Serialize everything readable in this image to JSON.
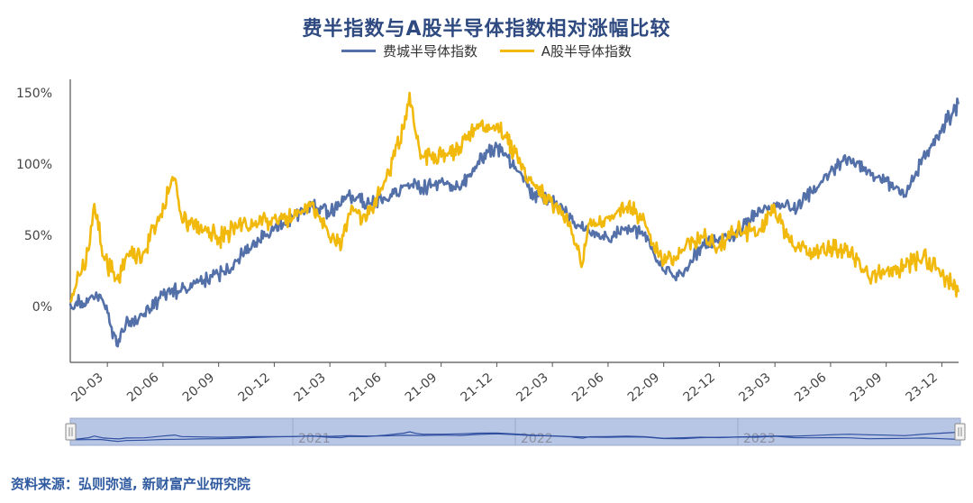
{
  "chart_data": {
    "type": "line",
    "title": "费半指数与A股半导体指数相对涨幅比较",
    "xlabel": "",
    "ylabel": "",
    "x_ticks": [
      "20-03",
      "20-06",
      "20-09",
      "20-12",
      "21-03",
      "21-06",
      "21-09",
      "21-12",
      "22-03",
      "22-06",
      "22-09",
      "22-12",
      "23-03",
      "23-06",
      "23-09",
      "23-12"
    ],
    "y_ticks": [
      "0%",
      "50%",
      "100%",
      "150%"
    ],
    "ylim": [
      -0.4,
      1.6
    ],
    "x_start": "2020-01",
    "grid": false,
    "legend_position": "top-center",
    "series": [
      {
        "name": "费城半导体指数",
        "color": "#5470a8",
        "x": [
          "2020-01",
          "2020-02",
          "2020-02-20",
          "2020-03-18",
          "2020-04",
          "2020-05",
          "2020-06",
          "2020-07",
          "2020-08",
          "2020-09",
          "2020-10",
          "2020-11",
          "2020-12",
          "2021-01",
          "2021-02",
          "2021-03",
          "2021-04",
          "2021-05",
          "2021-06",
          "2021-07",
          "2021-08",
          "2021-09",
          "2021-10",
          "2021-11",
          "2021-12",
          "2022-01",
          "2022-02",
          "2022-03",
          "2022-04",
          "2022-05",
          "2022-06",
          "2022-07",
          "2022-08",
          "2022-09",
          "2022-10",
          "2022-11",
          "2022-12",
          "2023-01",
          "2023-02",
          "2023-03",
          "2023-04",
          "2023-05",
          "2023-06",
          "2023-07",
          "2023-08",
          "2023-09",
          "2023-10",
          "2023-11",
          "2023-12",
          "2023-12-28"
        ],
        "values": [
          0.02,
          0.05,
          0.08,
          -0.28,
          -0.12,
          -0.05,
          0.08,
          0.12,
          0.18,
          0.22,
          0.32,
          0.45,
          0.55,
          0.62,
          0.72,
          0.65,
          0.78,
          0.72,
          0.75,
          0.85,
          0.82,
          0.88,
          0.82,
          1.02,
          1.12,
          0.98,
          0.78,
          0.75,
          0.62,
          0.52,
          0.48,
          0.55,
          0.52,
          0.25,
          0.22,
          0.42,
          0.48,
          0.52,
          0.65,
          0.72,
          0.68,
          0.8,
          0.95,
          1.05,
          0.95,
          0.88,
          0.78,
          1.05,
          1.25,
          1.42
        ]
      },
      {
        "name": "A股半导体指数",
        "color": "#f2b90d",
        "x": [
          "2020-01",
          "2020-01-20",
          "2020-02",
          "2020-02-10",
          "2020-02-25",
          "2020-03-20",
          "2020-04",
          "2020-05",
          "2020-06",
          "2020-06-20",
          "2020-07",
          "2020-08",
          "2020-09",
          "2020-10",
          "2020-11",
          "2020-12",
          "2021-01",
          "2021-02",
          "2021-03",
          "2021-03-20",
          "2021-04",
          "2021-05",
          "2021-06",
          "2021-07",
          "2021-07-10",
          "2021-07-20",
          "2021-08",
          "2021-09",
          "2021-10",
          "2021-11",
          "2021-12",
          "2022-01",
          "2022-02",
          "2022-03",
          "2022-04",
          "2022-04-20",
          "2022-05",
          "2022-06",
          "2022-07",
          "2022-08",
          "2022-09",
          "2022-10",
          "2022-11",
          "2022-12",
          "2023-01",
          "2023-02",
          "2023-03",
          "2023-04",
          "2023-05",
          "2023-06",
          "2023-07",
          "2023-08",
          "2023-09",
          "2023-10",
          "2023-11",
          "2023-12",
          "2023-12-28"
        ],
        "values": [
          0.03,
          0.25,
          0.4,
          0.72,
          0.35,
          0.18,
          0.35,
          0.38,
          0.72,
          0.9,
          0.62,
          0.55,
          0.48,
          0.55,
          0.6,
          0.62,
          0.62,
          0.72,
          0.48,
          0.42,
          0.65,
          0.62,
          0.88,
          1.25,
          1.5,
          1.22,
          1.05,
          1.05,
          1.12,
          1.25,
          1.28,
          1.08,
          0.85,
          0.72,
          0.55,
          0.3,
          0.58,
          0.62,
          0.7,
          0.58,
          0.3,
          0.4,
          0.5,
          0.42,
          0.55,
          0.5,
          0.68,
          0.42,
          0.38,
          0.42,
          0.38,
          0.22,
          0.25,
          0.28,
          0.35,
          0.22,
          0.1
        ]
      }
    ],
    "navigator": {
      "labels": [
        "2021",
        "2022",
        "2023"
      ]
    }
  },
  "footer": "资料来源：弘则弥道, 新财富产业研究院"
}
